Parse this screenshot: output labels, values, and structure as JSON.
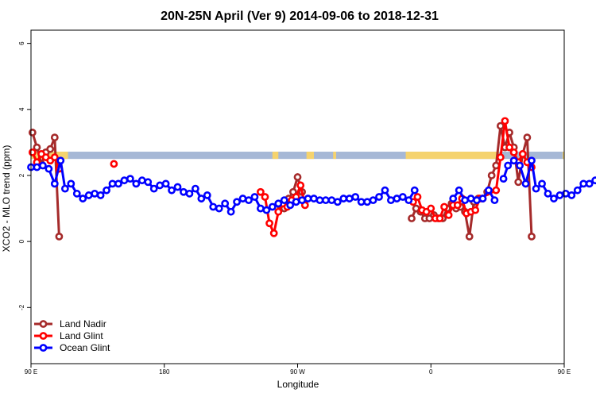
{
  "chart_data": {
    "type": "line",
    "title": "20N-25N April (Ver 9)   2014-09-06 to 2018-12-31",
    "xlabel": "Longitude",
    "ylabel": "XCO2 - MLO trend (ppm)",
    "xlim": [
      90,
      450
    ],
    "ylim": [
      -3.7,
      6.4
    ],
    "x_ticks": [
      {
        "value": 90,
        "label": "90 E"
      },
      {
        "value": 180,
        "label": "180"
      },
      {
        "value": 270,
        "label": "90 W"
      },
      {
        "value": 360,
        "label": "0"
      },
      {
        "value": 450,
        "label": "90 E"
      },
      {
        "value": 540,
        "label": "180"
      }
    ],
    "y_ticks": [
      -2,
      0,
      2,
      4,
      6
    ],
    "legend_position": "bottom-left",
    "land_mask_band": {
      "y_range": [
        2.5,
        2.72
      ],
      "ocean_color": "#A6B8D6",
      "land_color": "#F5D36E",
      "land_segments": [
        [
          90,
          115
        ],
        [
          253,
          257
        ],
        [
          276,
          281
        ],
        [
          294,
          296
        ],
        [
          343,
          406
        ],
        [
          449,
          478
        ],
        [
          497,
          503
        ]
      ]
    },
    "series": [
      {
        "name": "Land Nadir",
        "color": "#A52A2A",
        "segments": [
          [
            [
              91,
              3.3
            ],
            [
              94,
              2.85
            ],
            [
              97,
              2.35
            ],
            [
              100,
              2.7
            ],
            [
              103,
              2.8
            ],
            [
              106,
              3.15
            ],
            [
              109,
              0.15
            ]
          ],
          [
            [
              258,
              1.1
            ],
            [
              261,
              1.0
            ],
            [
              264,
              1.3
            ],
            [
              267,
              1.5
            ],
            [
              270,
              1.95
            ],
            [
              273,
              1.5
            ]
          ],
          [
            [
              347,
              0.7
            ],
            [
              350,
              1.0
            ],
            [
              353,
              0.9
            ],
            [
              356,
              0.7
            ],
            [
              359,
              0.7
            ],
            [
              362,
              0.8
            ],
            [
              365,
              0.7
            ],
            [
              368,
              0.7
            ],
            [
              371,
              1.0
            ],
            [
              374,
              1.15
            ],
            [
              377,
              1.0
            ],
            [
              380,
              1.05
            ],
            [
              383,
              0.9
            ],
            [
              386,
              0.15
            ],
            [
              389,
              1.2
            ],
            [
              392,
              1.3
            ],
            [
              395,
              1.3
            ],
            [
              398,
              1.5
            ],
            [
              401,
              2.0
            ],
            [
              404,
              2.3
            ],
            [
              407,
              3.5
            ],
            [
              410,
              2.85
            ],
            [
              413,
              3.3
            ],
            [
              416,
              2.85
            ],
            [
              419,
              1.8
            ],
            [
              422,
              2.65
            ],
            [
              425,
              3.15
            ],
            [
              428,
              0.15
            ]
          ]
        ]
      },
      {
        "name": "Land Glint",
        "color": "#FF0000",
        "segments": [
          [
            [
              91,
              2.7
            ],
            [
              94,
              2.4
            ],
            [
              97,
              2.65
            ],
            [
              100,
              2.55
            ],
            [
              103,
              2.45
            ],
            [
              106,
              2.55
            ],
            [
              109,
              2.2
            ]
          ],
          [
            [
              146,
              2.35
            ]
          ],
          [
            [
              245,
              1.5
            ],
            [
              248,
              1.35
            ],
            [
              251,
              0.55
            ],
            [
              254,
              0.25
            ],
            [
              257,
              0.9
            ],
            [
              260,
              1.15
            ],
            [
              263,
              1.05
            ],
            [
              266,
              1.25
            ],
            [
              269,
              1.35
            ],
            [
              272,
              1.7
            ],
            [
              275,
              1.1
            ]
          ],
          [
            [
              348,
              1.2
            ],
            [
              351,
              1.35
            ],
            [
              354,
              0.95
            ],
            [
              357,
              0.9
            ],
            [
              360,
              1.0
            ],
            [
              363,
              0.7
            ],
            [
              366,
              0.7
            ],
            [
              369,
              1.05
            ],
            [
              372,
              0.8
            ],
            [
              375,
              1.1
            ],
            [
              378,
              1.1
            ],
            [
              381,
              1.3
            ],
            [
              384,
              0.85
            ],
            [
              387,
              0.9
            ],
            [
              390,
              0.95
            ],
            [
              393,
              1.3
            ],
            [
              404,
              1.55
            ],
            [
              407,
              2.55
            ],
            [
              410,
              3.65
            ],
            [
              413,
              2.85
            ],
            [
              416,
              2.7
            ],
            [
              419,
              2.4
            ],
            [
              422,
              2.65
            ],
            [
              425,
              2.4
            ],
            [
              428,
              2.25
            ]
          ]
        ]
      },
      {
        "name": "Ocean Glint",
        "color": "#0000FF",
        "segments": [
          [
            [
              90,
              2.25
            ],
            [
              94,
              2.25
            ],
            [
              98,
              2.3
            ],
            [
              102,
              2.2
            ],
            [
              106,
              1.75
            ],
            [
              110,
              2.45
            ],
            [
              113,
              1.6
            ],
            [
              117,
              1.75
            ],
            [
              121,
              1.45
            ],
            [
              125,
              1.3
            ],
            [
              129,
              1.4
            ],
            [
              133,
              1.45
            ],
            [
              137,
              1.4
            ],
            [
              141,
              1.55
            ],
            [
              145,
              1.75
            ],
            [
              149,
              1.75
            ],
            [
              153,
              1.85
            ],
            [
              157,
              1.9
            ],
            [
              161,
              1.75
            ],
            [
              165,
              1.85
            ],
            [
              169,
              1.8
            ],
            [
              173,
              1.6
            ],
            [
              177,
              1.7
            ],
            [
              181,
              1.75
            ],
            [
              185,
              1.55
            ],
            [
              189,
              1.65
            ],
            [
              193,
              1.5
            ],
            [
              197,
              1.45
            ],
            [
              201,
              1.6
            ],
            [
              205,
              1.3
            ],
            [
              209,
              1.4
            ],
            [
              213,
              1.05
            ],
            [
              217,
              1.0
            ],
            [
              221,
              1.15
            ],
            [
              225,
              0.9
            ],
            [
              229,
              1.2
            ],
            [
              233,
              1.3
            ],
            [
              237,
              1.25
            ],
            [
              241,
              1.35
            ],
            [
              245,
              1.0
            ],
            [
              249,
              0.95
            ],
            [
              253,
              1.05
            ],
            [
              257,
              1.15
            ],
            [
              261,
              1.25
            ],
            [
              265,
              1.1
            ],
            [
              269,
              1.2
            ],
            [
              273,
              1.25
            ],
            [
              277,
              1.3
            ],
            [
              281,
              1.3
            ],
            [
              285,
              1.25
            ],
            [
              289,
              1.25
            ],
            [
              293,
              1.25
            ],
            [
              297,
              1.2
            ],
            [
              301,
              1.3
            ],
            [
              305,
              1.3
            ],
            [
              309,
              1.35
            ],
            [
              313,
              1.2
            ],
            [
              317,
              1.2
            ],
            [
              321,
              1.25
            ],
            [
              325,
              1.35
            ],
            [
              329,
              1.55
            ],
            [
              333,
              1.25
            ],
            [
              337,
              1.3
            ],
            [
              341,
              1.35
            ],
            [
              345,
              1.25
            ],
            [
              349,
              1.55
            ]
          ],
          [
            [
              375,
              1.3
            ],
            [
              379,
              1.55
            ],
            [
              383,
              1.25
            ],
            [
              387,
              1.3
            ],
            [
              391,
              1.25
            ],
            [
              395,
              1.3
            ],
            [
              399,
              1.55
            ],
            [
              403,
              1.25
            ]
          ],
          [
            [
              409,
              1.9
            ],
            [
              412,
              2.3
            ],
            [
              416,
              2.45
            ],
            [
              420,
              2.3
            ],
            [
              424,
              1.75
            ],
            [
              428,
              2.45
            ],
            [
              431,
              1.6
            ],
            [
              435,
              1.75
            ],
            [
              439,
              1.45
            ],
            [
              443,
              1.3
            ],
            [
              447,
              1.4
            ],
            [
              451,
              1.45
            ],
            [
              455,
              1.4
            ],
            [
              459,
              1.55
            ],
            [
              463,
              1.75
            ],
            [
              467,
              1.75
            ],
            [
              471,
              1.85
            ],
            [
              475,
              1.9
            ]
          ]
        ]
      }
    ]
  }
}
